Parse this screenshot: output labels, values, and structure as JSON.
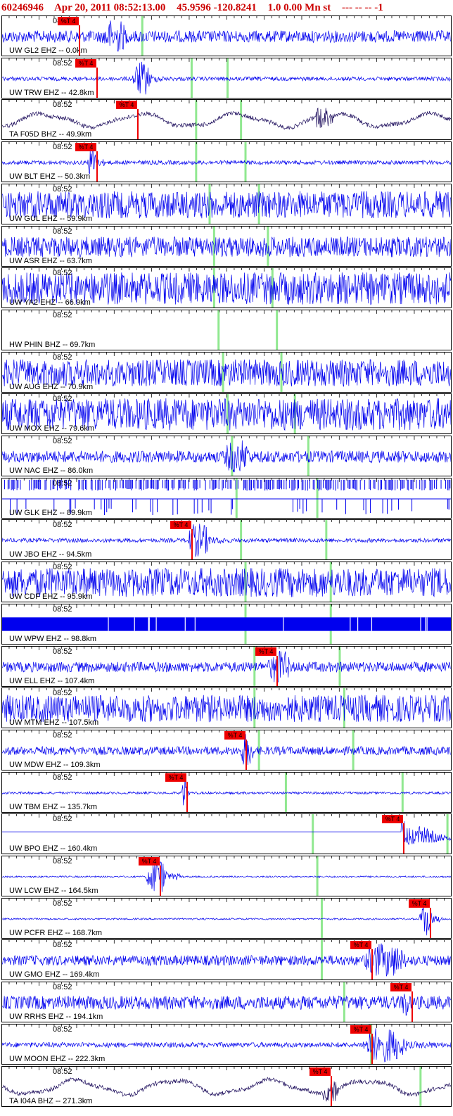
{
  "header": {
    "event_id": "60246946",
    "datetime": "Apr 20, 2011 08:52:13.00",
    "location": "45.9596 -120.8241",
    "magnitude_info": "1.0 0.00 Mn st",
    "flags": "--- -- --  -1"
  },
  "colors": {
    "header_text": "#cc0000",
    "trace_blue": "#0000ee",
    "trace_dark": "#1a0a5a",
    "pick": "#ee0000",
    "marker_green": "#90e890",
    "border": "#000000"
  },
  "traces": [
    {
      "time": "08:52",
      "station": "UW GL2 EHZ -- 0.0km",
      "style": "burst",
      "color": "blue",
      "amp": 0.35,
      "burst": [
        0.22,
        0.32
      ],
      "pick": 0.17,
      "pick_label": "%T 4",
      "markers": [
        0.31
      ]
    },
    {
      "time": "08:52",
      "station": "UW TRW EHZ -- 42.8km",
      "style": "burst",
      "color": "blue",
      "amp": 0.12,
      "burst": [
        0.29,
        0.36
      ],
      "pick": 0.21,
      "pick_label": "%T 4",
      "markers": [
        0.42,
        0.5
      ]
    },
    {
      "time": "08:52",
      "station": "TA F05D BHZ -- 49.9km",
      "style": "wave",
      "color": "dark",
      "amp": 0.5,
      "burst": [
        0.7,
        0.74
      ],
      "pick": 0.3,
      "pick_label": "%T 4",
      "markers": [
        0.43,
        0.53
      ]
    },
    {
      "time": "08:52",
      "station": "UW BLT EHZ -- 50.3km",
      "style": "burst",
      "color": "blue",
      "amp": 0.12,
      "burst": [
        0.19,
        0.23
      ],
      "pick": 0.21,
      "pick_label": "%T 4",
      "markers": [
        0.43,
        0.54
      ]
    },
    {
      "time": "08:52",
      "station": "UW GUL EHZ -- 59.9km",
      "style": "noise",
      "color": "blue",
      "amp": 0.8,
      "burst": null,
      "pick": null,
      "pick_label": "",
      "markers": [
        0.46,
        0.57
      ]
    },
    {
      "time": "08:52",
      "station": "UW ASR EHZ -- 63.7km",
      "style": "noise",
      "color": "blue",
      "amp": 0.6,
      "burst": null,
      "pick": null,
      "pick_label": "",
      "markers": [
        0.47,
        0.59
      ]
    },
    {
      "time": "08:52",
      "station": "UW YA2 EHZ -- 66.9km",
      "style": "noise",
      "color": "blue",
      "amp": 0.95,
      "burst": null,
      "pick": null,
      "pick_label": "",
      "markers": [
        0.47,
        0.6
      ]
    },
    {
      "time": "08:52",
      "station": "HW PHIN BHZ -- 69.7km",
      "style": "flat",
      "color": "blue",
      "amp": 0,
      "burst": null,
      "pick": null,
      "pick_label": "",
      "markers": [
        0.48,
        0.61
      ]
    },
    {
      "time": "08:52",
      "station": "UW AUG EHZ -- 70.9km",
      "style": "noise",
      "color": "blue",
      "amp": 0.8,
      "burst": null,
      "pick": null,
      "pick_label": "",
      "markers": [
        0.49,
        0.62
      ]
    },
    {
      "time": "08:52",
      "station": "UW MOX EHZ -- 79.6km",
      "style": "noise",
      "color": "blue",
      "amp": 0.95,
      "burst": null,
      "pick": null,
      "pick_label": "",
      "markers": [
        0.5,
        0.65
      ]
    },
    {
      "time": "08:52",
      "station": "UW NAC EHZ -- 86.0km",
      "style": "noise",
      "color": "blue",
      "amp": 0.35,
      "burst": [
        0.49,
        0.6
      ],
      "pick": null,
      "pick_label": "",
      "markers": [
        0.51,
        0.68
      ]
    },
    {
      "time": "08:52",
      "station": "UW GLK EHZ -- 89.9km",
      "style": "blocks",
      "color": "blue",
      "amp": 0,
      "burst": null,
      "pick": null,
      "pick_label": "",
      "markers": [
        0.52,
        0.7
      ]
    },
    {
      "time": "08:52",
      "station": "UW JBO EHZ -- 94.5km",
      "style": "burst",
      "color": "blue",
      "amp": 0.12,
      "burst": [
        0.41,
        0.5
      ],
      "pick": 0.42,
      "pick_label": "%T 4",
      "markers": [
        0.53,
        0.72
      ]
    },
    {
      "time": "08:52",
      "station": "UW CDF EHZ -- 95.9km",
      "style": "noise",
      "color": "blue",
      "amp": 0.85,
      "burst": null,
      "pick": null,
      "pick_label": "",
      "markers": [
        0.54,
        0.73
      ]
    },
    {
      "time": "08:52",
      "station": "UW WPW EHZ -- 98.8km",
      "style": "band",
      "color": "blue",
      "amp": 0,
      "burst": null,
      "pick": null,
      "pick_label": "",
      "markers": [
        0.54,
        0.73
      ]
    },
    {
      "time": "08:52",
      "station": "UW ELL EHZ -- 107.4km",
      "style": "burst",
      "color": "blue",
      "amp": 0.3,
      "burst": [
        0.59,
        0.68
      ],
      "pick": 0.61,
      "pick_label": "%T 4",
      "markers": [
        0.56,
        0.75
      ]
    },
    {
      "time": "08:52",
      "station": "UW MTM EHZ -- 107.5km",
      "style": "noise",
      "color": "blue",
      "amp": 0.8,
      "burst": null,
      "pick": null,
      "pick_label": "",
      "markers": [
        0.56,
        0.76
      ]
    },
    {
      "time": "08:52",
      "station": "UW MDW EHZ -- 109.3km",
      "style": "burst",
      "color": "blue",
      "amp": 0.25,
      "burst": [
        0.53,
        0.58
      ],
      "pick": 0.54,
      "pick_label": "%T 4",
      "markers": [
        0.57,
        0.78
      ]
    },
    {
      "time": "08:52",
      "station": "UW TBM EHZ -- 135.7km",
      "style": "burst",
      "color": "blue",
      "amp": 0.07,
      "burst": [
        0.4,
        0.42
      ],
      "pick": 0.41,
      "pick_label": "%T 4",
      "markers": [
        0.63,
        0.89
      ]
    },
    {
      "time": "08:52",
      "station": "UW BPO EHZ -- 160.4km",
      "style": "decay",
      "color": "blue",
      "amp": 0,
      "burst": [
        0.89,
        0.99
      ],
      "pick": 0.89,
      "pick_label": "%T 4",
      "markers": [
        0.69,
        0.99
      ]
    },
    {
      "time": "08:52",
      "station": "UW LCW EHZ -- 164.5km",
      "style": "burst",
      "color": "blue",
      "amp": 0.05,
      "burst": [
        0.32,
        0.4
      ],
      "pick": 0.35,
      "pick_label": "%T 4",
      "markers": [
        0.7
      ]
    },
    {
      "time": "08:52",
      "station": "UW PCFR EHZ -- 168.7km",
      "style": "burst",
      "color": "blue",
      "amp": 0.05,
      "burst": [
        0.93,
        0.98
      ],
      "pick": 0.95,
      "pick_label": "%T 4",
      "markers": [
        0.71
      ]
    },
    {
      "time": "08:52",
      "station": "UW GMO EHZ -- 169.4km",
      "style": "burst",
      "color": "blue",
      "amp": 0.3,
      "burst": [
        0.8,
        0.97
      ],
      "pick": 0.82,
      "pick_label": "%T 4",
      "markers": [
        0.71
      ]
    },
    {
      "time": "08:52",
      "station": "UW RRHS EHZ -- 194.1km",
      "style": "noise",
      "color": "blue",
      "amp": 0.4,
      "burst": [
        0.89,
        0.92
      ],
      "pick": 0.91,
      "pick_label": "%T 4",
      "markers": [
        0.76
      ]
    },
    {
      "time": "08:52",
      "station": "UW MOON EHZ -- 222.3km",
      "style": "burst",
      "color": "blue",
      "amp": 0.15,
      "burst": [
        0.8,
        0.97
      ],
      "pick": 0.82,
      "pick_label": "%T 4",
      "markers": [
        0.82
      ]
    },
    {
      "time": "08:52",
      "station": "TA I04A BHZ -- 271.3km",
      "style": "wave",
      "color": "dark",
      "amp": 0.55,
      "burst": [
        0.71,
        0.75
      ],
      "pick": 0.73,
      "pick_label": "%T 4",
      "markers": [
        0.93
      ]
    }
  ]
}
